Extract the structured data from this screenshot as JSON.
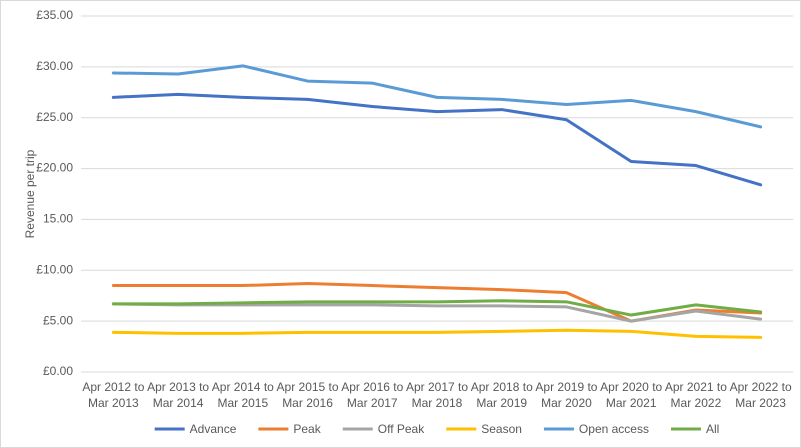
{
  "chart_data": {
    "type": "line",
    "y_label": "Revenue per trip",
    "categories": [
      "Apr 2012 to Mar 2013",
      "Apr 2013 to Mar 2014",
      "Apr 2014 to Mar 2015",
      "Apr 2015 to Mar 2016",
      "Apr 2016 to Mar 2017",
      "Apr 2017 to Mar 2018",
      "Apr 2018 to Mar 2019",
      "Apr 2019 to Mar 2020",
      "Apr 2020 to Mar 2021",
      "Apr 2021 to Mar 2022",
      "Apr 2022 to Mar 2023"
    ],
    "series": [
      {
        "name": "Advance",
        "color": "#4472c4",
        "values": [
          27.0,
          27.3,
          27.0,
          26.8,
          26.1,
          25.6,
          25.8,
          24.8,
          20.7,
          20.3,
          18.4
        ]
      },
      {
        "name": "Peak",
        "color": "#ed7d31",
        "values": [
          8.5,
          8.5,
          8.5,
          8.7,
          8.5,
          8.3,
          8.1,
          7.8,
          5.0,
          6.1,
          5.8
        ]
      },
      {
        "name": "Off Peak",
        "color": "#a5a5a5",
        "values": [
          6.7,
          6.6,
          6.6,
          6.6,
          6.6,
          6.5,
          6.5,
          6.4,
          5.0,
          6.0,
          5.2
        ]
      },
      {
        "name": "Season",
        "color": "#ffc000",
        "values": [
          3.9,
          3.8,
          3.8,
          3.9,
          3.9,
          3.9,
          4.0,
          4.1,
          4.0,
          3.5,
          3.4
        ]
      },
      {
        "name": "Open access",
        "color": "#5b9bd5",
        "values": [
          29.4,
          29.3,
          30.1,
          28.6,
          28.4,
          27.0,
          26.8,
          26.3,
          26.7,
          25.6,
          24.1
        ]
      },
      {
        "name": "All",
        "color": "#70ad47",
        "values": [
          6.7,
          6.7,
          6.8,
          6.9,
          6.9,
          6.9,
          7.0,
          6.9,
          5.6,
          6.6,
          5.9
        ]
      }
    ],
    "ylim": [
      0,
      35
    ],
    "yticks": [
      {
        "value": 0,
        "label": "£0.00"
      },
      {
        "value": 5,
        "label": "£5.00"
      },
      {
        "value": 10,
        "label": "£10.00"
      },
      {
        "value": 15,
        "label": "15.00"
      },
      {
        "value": 20,
        "label": "£20.00"
      },
      {
        "value": 25,
        "label": "£25.00"
      },
      {
        "value": 30,
        "label": "£30.00"
      },
      {
        "value": 35,
        "label": "£35.00"
      }
    ],
    "grid": true,
    "legend": "bottom"
  }
}
